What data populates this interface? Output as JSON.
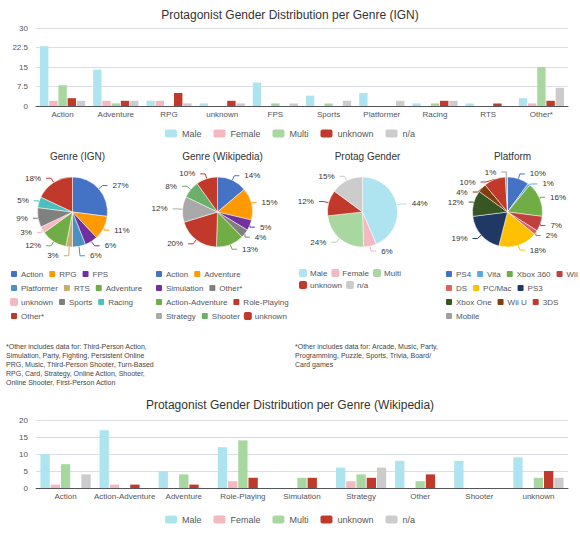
{
  "chart_data": [
    {
      "type": "bar",
      "title": "Protagonist Gender Distribution per Genre (IGN)",
      "categories": [
        "Action",
        "Adventure",
        "RPG",
        "unknown",
        "FPS",
        "Sports",
        "Platformer",
        "Racing",
        "RTS",
        "Other*"
      ],
      "series": [
        {
          "name": "Male",
          "color": "#aee4f0",
          "values": [
            23,
            14,
            2,
            1,
            9,
            4,
            5,
            1,
            1,
            3
          ]
        },
        {
          "name": "Female",
          "color": "#f4b8c1",
          "values": [
            2,
            2,
            2,
            0,
            0,
            0,
            0,
            0,
            0,
            1
          ]
        },
        {
          "name": "Multi",
          "color": "#a8d8a0",
          "values": [
            8,
            1,
            0,
            0,
            1,
            1,
            0,
            1,
            0,
            15
          ]
        },
        {
          "name": "unknown",
          "color": "#c0392b",
          "values": [
            3,
            2,
            5,
            2,
            0,
            0,
            0,
            2,
            1,
            2
          ]
        },
        {
          "name": "n/a",
          "color": "#cccccc",
          "values": [
            2,
            2,
            1,
            1,
            1,
            2,
            2,
            2,
            0,
            7
          ]
        }
      ],
      "ylim": [
        0,
        30
      ],
      "yticks": [
        0,
        7.5,
        15,
        22.5,
        30
      ],
      "grid": true,
      "legend": "bottom"
    },
    {
      "type": "pie",
      "title": "Genre (IGN)",
      "categories": [
        "Action",
        "RPG",
        "FPS",
        "Platformer",
        "RTS",
        "Adventure",
        "unknown",
        "Sports",
        "Racing",
        "Other*"
      ],
      "values": [
        27,
        11,
        6,
        6,
        3,
        12,
        3,
        9,
        5,
        18
      ],
      "value_labels": [
        "27%",
        "11%",
        "6%",
        "6%",
        "3%",
        "12%",
        "3%",
        "9%",
        "5%",
        "18%"
      ],
      "colors": [
        "#4472c4",
        "#ff9900",
        "#7030a0",
        "#4a90c0",
        "#c9aa71",
        "#70ad47",
        "#f4b8c1",
        "#808080",
        "#4dbfbf",
        "#c0392b"
      ],
      "data_labels": true,
      "legend": "bottom",
      "annotations": [
        "*Other includes data for: Third-Person Action,\nSimulation, Party, Fighting, Persistent Online\nPRG, Music, Third-Person Shooter, Turn-Based\nRPG, Card, Strategy, Online Action, Shooter,\nOnline Shooter, First-Person Action"
      ]
    },
    {
      "type": "pie",
      "title": "Genre (Wikipedia)",
      "categories": [
        "Action",
        "Adventure",
        "Simulation",
        "Other*",
        "Action-Adventure",
        "Role-Playing",
        "Strategy",
        "Shooter",
        "unknown"
      ],
      "values": [
        14,
        15,
        5,
        4,
        13,
        20,
        12,
        8,
        10
      ],
      "value_labels": [
        "14%",
        "15%",
        "5%",
        "4%",
        "13%",
        "20%",
        "12%",
        "8%",
        "10%"
      ],
      "colors": [
        "#4472c4",
        "#ff9900",
        "#7030a0",
        "#808080",
        "#70ad47",
        "#c0392b",
        "#a9a9a9",
        "#6aaf6a",
        "#c0392b"
      ],
      "data_labels": true,
      "legend": "bottom",
      "annotations": [
        "*Other includes data for: Arcade, Music, Party,\nProgramming, Puzzle, Sports, Trivia, Board/\nCard games"
      ]
    },
    {
      "type": "pie",
      "title": "Protag Gender",
      "categories": [
        "Male",
        "Female",
        "Multi",
        "unknown",
        "n/a"
      ],
      "values": [
        44,
        6,
        24,
        12,
        15
      ],
      "value_labels": [
        "44%",
        "6%",
        "24%",
        "12%",
        "15%"
      ],
      "colors": [
        "#aee4f0",
        "#f4b8c1",
        "#a8d8a0",
        "#c0392b",
        "#cccccc"
      ],
      "data_labels": true,
      "legend": "bottom"
    },
    {
      "type": "pie",
      "title": "Platform",
      "categories": [
        "PS4",
        "Vita",
        "Xbox 360",
        "Wii",
        "DS",
        "PC/Mac",
        "PS3",
        "Xbox One",
        "Wii U",
        "3DS",
        "Mobile"
      ],
      "values": [
        10,
        1,
        16,
        7,
        2,
        18,
        19,
        12,
        4,
        10,
        1
      ],
      "value_labels": [
        "10%",
        "1%",
        "16%",
        "7%",
        "2%",
        "18%",
        "19%",
        "12%",
        "4%",
        "10%",
        "1%"
      ],
      "colors": [
        "#4472c4",
        "#5aaae0",
        "#70ad47",
        "#c04040",
        "#e06060",
        "#ffc000",
        "#1f3864",
        "#375623",
        "#843c0c",
        "#c0392b",
        "#a0a0a0"
      ],
      "data_labels": true,
      "legend": "bottom"
    },
    {
      "type": "bar",
      "title": "Protagonist Gender Distribution per Genre (Wikipedia)",
      "categories": [
        "Action",
        "Action-Adventure",
        "Adventure",
        "Role-Playing",
        "Simulation",
        "Strategy",
        "Other",
        "Shooter",
        "unknown"
      ],
      "series": [
        {
          "name": "Male",
          "color": "#aee4f0",
          "values": [
            10,
            17,
            5,
            12,
            0,
            6,
            8,
            8,
            9
          ]
        },
        {
          "name": "Female",
          "color": "#f4b8c1",
          "values": [
            1,
            1,
            0,
            2,
            0,
            2,
            0,
            0,
            0
          ]
        },
        {
          "name": "Multi",
          "color": "#a8d8a0",
          "values": [
            7,
            0,
            4,
            14,
            3,
            4,
            2,
            0,
            3
          ]
        },
        {
          "name": "unknown",
          "color": "#c0392b",
          "values": [
            0,
            1,
            1,
            3,
            3,
            3,
            4,
            0,
            5
          ]
        },
        {
          "name": "n/a",
          "color": "#cccccc",
          "values": [
            4,
            0,
            0,
            0,
            0,
            6,
            0,
            0,
            3
          ]
        }
      ],
      "ylim": [
        0,
        20
      ],
      "yticks": [
        0,
        5,
        10,
        15,
        20
      ],
      "grid": true,
      "legend": "bottom"
    }
  ]
}
